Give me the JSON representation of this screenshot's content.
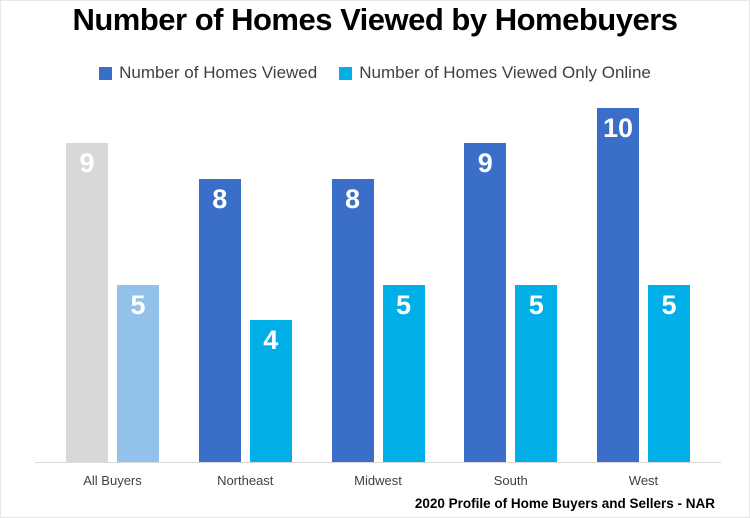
{
  "title": "Number of Homes Viewed by Homebuyers",
  "source_note": "2020 Profile of Home Buyers and Sellers - NAR",
  "legend": [
    {
      "label": "Number of Homes Viewed",
      "color": "#3A6EC8"
    },
    {
      "label": "Number of Homes Viewed Only Online",
      "color": "#00AEE8"
    }
  ],
  "colors": {
    "series_viewed": "#3A6EC8",
    "series_online": "#00AEE8",
    "all_buyers_viewed": "#D8D8D8",
    "all_buyers_online": "#92C1E9",
    "axis_line": "#D9D9D9",
    "label_text": "#404040",
    "value_label_text": "#FFFFFF",
    "title_text": "#000000"
  },
  "chart_data": {
    "type": "bar",
    "title": "Number of Homes Viewed by Homebuyers",
    "categories": [
      "All Buyers",
      "Northeast",
      "Midwest",
      "South",
      "West"
    ],
    "series": [
      {
        "name": "Number of Homes Viewed",
        "color": "#3A6EC8",
        "values": [
          9,
          8,
          8,
          9,
          10
        ],
        "bar_colors": [
          "#D8D8D8",
          "#3A6EC8",
          "#3A6EC8",
          "#3A6EC8",
          "#3A6EC8"
        ]
      },
      {
        "name": "Number of Homes Viewed Only Online",
        "color": "#00AEE8",
        "values": [
          5,
          4,
          5,
          5,
          5
        ],
        "bar_colors": [
          "#92C1E9",
          "#00AEE8",
          "#00AEE8",
          "#00AEE8",
          "#00AEE8"
        ]
      }
    ],
    "ylim": [
      0,
      10.5
    ],
    "grid": false,
    "legend_position": "top-center",
    "value_labels": "inside-top",
    "xlabel": "",
    "ylabel": ""
  }
}
